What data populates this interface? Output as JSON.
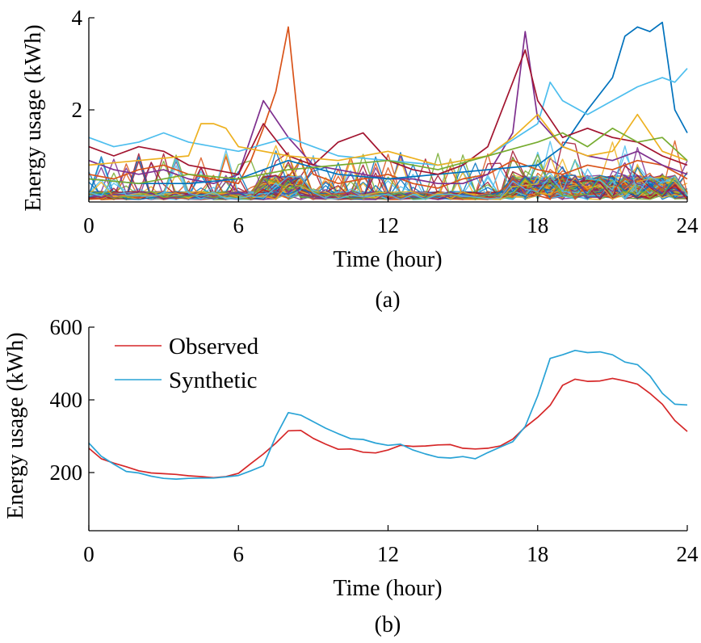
{
  "chart_data": [
    {
      "type": "line",
      "panel": "(a)",
      "xlabel": "Time (hour)",
      "ylabel": "Energy usage (kWh)",
      "xlim": [
        0,
        24
      ],
      "ylim": [
        0,
        4
      ],
      "xticks": [
        0,
        6,
        12,
        18,
        24
      ],
      "yticks": [
        2,
        4
      ],
      "grid": false,
      "legend": "none",
      "note": "many overlapping individual household load profiles",
      "highlighted_series": [
        {
          "color": "#d95319",
          "x": [
            0,
            1,
            2,
            3,
            4,
            5,
            6,
            6.5,
            7,
            7.5,
            8,
            8.5,
            9,
            10,
            11,
            12,
            13,
            14,
            15,
            16,
            17,
            18,
            19,
            20,
            21,
            22,
            23,
            24
          ],
          "y": [
            0.6,
            0.5,
            0.7,
            0.8,
            0.6,
            0.5,
            0.4,
            0.9,
            1.6,
            2.4,
            3.8,
            1.2,
            0.6,
            0.4,
            0.5,
            0.6,
            0.4,
            0.3,
            0.5,
            0.6,
            0.9,
            0.7,
            0.6,
            0.8,
            0.7,
            0.9,
            0.8,
            0.5
          ]
        },
        {
          "color": "#7e2f8e",
          "x": [
            0,
            1,
            2,
            3,
            4,
            5,
            6,
            7,
            8,
            9,
            10,
            11,
            12,
            13,
            14,
            15,
            16,
            17,
            17.5,
            18,
            19,
            20,
            21,
            22,
            23,
            24
          ],
          "y": [
            0.9,
            0.7,
            0.6,
            0.7,
            0.5,
            0.4,
            0.6,
            2.2,
            1.4,
            0.8,
            0.7,
            0.6,
            0.5,
            0.5,
            0.4,
            0.4,
            0.6,
            1.5,
            3.7,
            1.8,
            1.2,
            1.0,
            0.9,
            1.1,
            0.8,
            0.6
          ]
        },
        {
          "color": "#0072bd",
          "x": [
            0,
            2,
            4,
            6,
            8,
            10,
            12,
            14,
            16,
            18,
            19,
            20,
            21,
            21.5,
            22,
            22.5,
            23,
            23.5,
            24
          ],
          "y": [
            0.5,
            0.4,
            0.4,
            0.5,
            0.9,
            0.6,
            0.5,
            0.6,
            0.7,
            0.8,
            1.2,
            2.0,
            2.7,
            3.6,
            3.8,
            3.7,
            3.9,
            2.0,
            1.5
          ]
        },
        {
          "color": "#4dbeee",
          "x": [
            0,
            1,
            2,
            3,
            4,
            5,
            6,
            8,
            10,
            12,
            14,
            16,
            18,
            18.5,
            19,
            20,
            21,
            22,
            23,
            23.5,
            24
          ],
          "y": [
            1.4,
            1.2,
            1.3,
            1.5,
            1.3,
            1.2,
            1.1,
            1.4,
            1.0,
            0.9,
            0.8,
            1.0,
            1.7,
            2.6,
            2.2,
            1.9,
            2.2,
            2.5,
            2.7,
            2.6,
            2.9
          ]
        },
        {
          "color": "#a2142f",
          "x": [
            0,
            1,
            2,
            3,
            4,
            5,
            6,
            7,
            8,
            9,
            10,
            11,
            12,
            13,
            14,
            15,
            16,
            17,
            17.5,
            18,
            19,
            20,
            21,
            22,
            23,
            24
          ],
          "y": [
            1.2,
            1.0,
            1.2,
            1.1,
            0.8,
            0.7,
            0.6,
            1.7,
            1.0,
            0.8,
            1.3,
            1.5,
            0.9,
            0.7,
            0.6,
            0.8,
            1.2,
            2.6,
            3.3,
            2.2,
            1.4,
            1.6,
            1.4,
            1.3,
            1.0,
            0.8
          ]
        },
        {
          "color": "#edb120",
          "x": [
            0,
            2,
            4,
            4.5,
            5,
            5.5,
            6,
            8,
            10,
            12,
            14,
            16,
            17,
            18,
            19,
            20,
            21,
            22,
            23,
            24
          ],
          "y": [
            0.8,
            0.9,
            1.0,
            1.7,
            1.7,
            1.6,
            1.2,
            1.0,
            0.9,
            1.1,
            0.8,
            1.0,
            1.4,
            1.9,
            1.2,
            1.0,
            1.1,
            1.9,
            1.1,
            0.9
          ]
        },
        {
          "color": "#77ac30",
          "x": [
            0,
            2,
            4,
            6,
            8,
            10,
            12,
            14,
            16,
            18,
            19,
            20,
            21,
            22,
            23,
            24
          ],
          "y": [
            0.5,
            0.4,
            0.6,
            0.5,
            0.7,
            0.8,
            0.9,
            0.7,
            1.0,
            1.3,
            1.5,
            1.2,
            1.6,
            1.3,
            1.4,
            0.9
          ]
        }
      ]
    },
    {
      "type": "line",
      "panel": "(b)",
      "xlabel": "Time (hour)",
      "ylabel": "Energy usage (kWh)",
      "xlim": [
        0,
        24
      ],
      "ylim": [
        40,
        600
      ],
      "xticks": [
        0,
        6,
        12,
        18,
        24
      ],
      "yticks": [
        200,
        400,
        600
      ],
      "grid": false,
      "legend": "top-left",
      "x": [
        0,
        0.5,
        1,
        1.5,
        2,
        2.5,
        3,
        3.5,
        4,
        4.5,
        5,
        5.5,
        6,
        6.5,
        7,
        7.5,
        8,
        8.5,
        9,
        9.5,
        10,
        10.5,
        11,
        11.5,
        12,
        12.5,
        13,
        13.5,
        14,
        14.5,
        15,
        15.5,
        16,
        16.5,
        17,
        17.5,
        18,
        18.5,
        19,
        19.5,
        20,
        20.5,
        21,
        21.5,
        22,
        22.5,
        23,
        23.5,
        24
      ],
      "series": [
        {
          "name": "Observed",
          "color": "#d62728",
          "values": [
            267,
            238,
            226,
            216,
            205,
            199,
            197,
            195,
            191,
            189,
            186,
            189,
            198,
            225,
            251,
            281,
            315,
            316,
            294,
            278,
            264,
            265,
            256,
            254,
            262,
            275,
            272,
            273,
            276,
            277,
            267,
            265,
            267,
            273,
            292,
            325,
            352,
            385,
            440,
            457,
            451,
            452,
            459,
            452,
            443,
            418,
            388,
            343,
            313
          ]
        },
        {
          "name": "Synthetic",
          "color": "#29a3d6",
          "values": [
            281,
            245,
            223,
            203,
            199,
            190,
            184,
            182,
            184,
            185,
            185,
            188,
            192,
            205,
            219,
            300,
            365,
            358,
            340,
            322,
            307,
            293,
            291,
            281,
            275,
            278,
            262,
            251,
            242,
            240,
            244,
            238,
            255,
            270,
            285,
            327,
            411,
            514,
            524,
            536,
            530,
            532,
            524,
            504,
            497,
            466,
            418,
            388,
            386
          ]
        }
      ]
    }
  ]
}
